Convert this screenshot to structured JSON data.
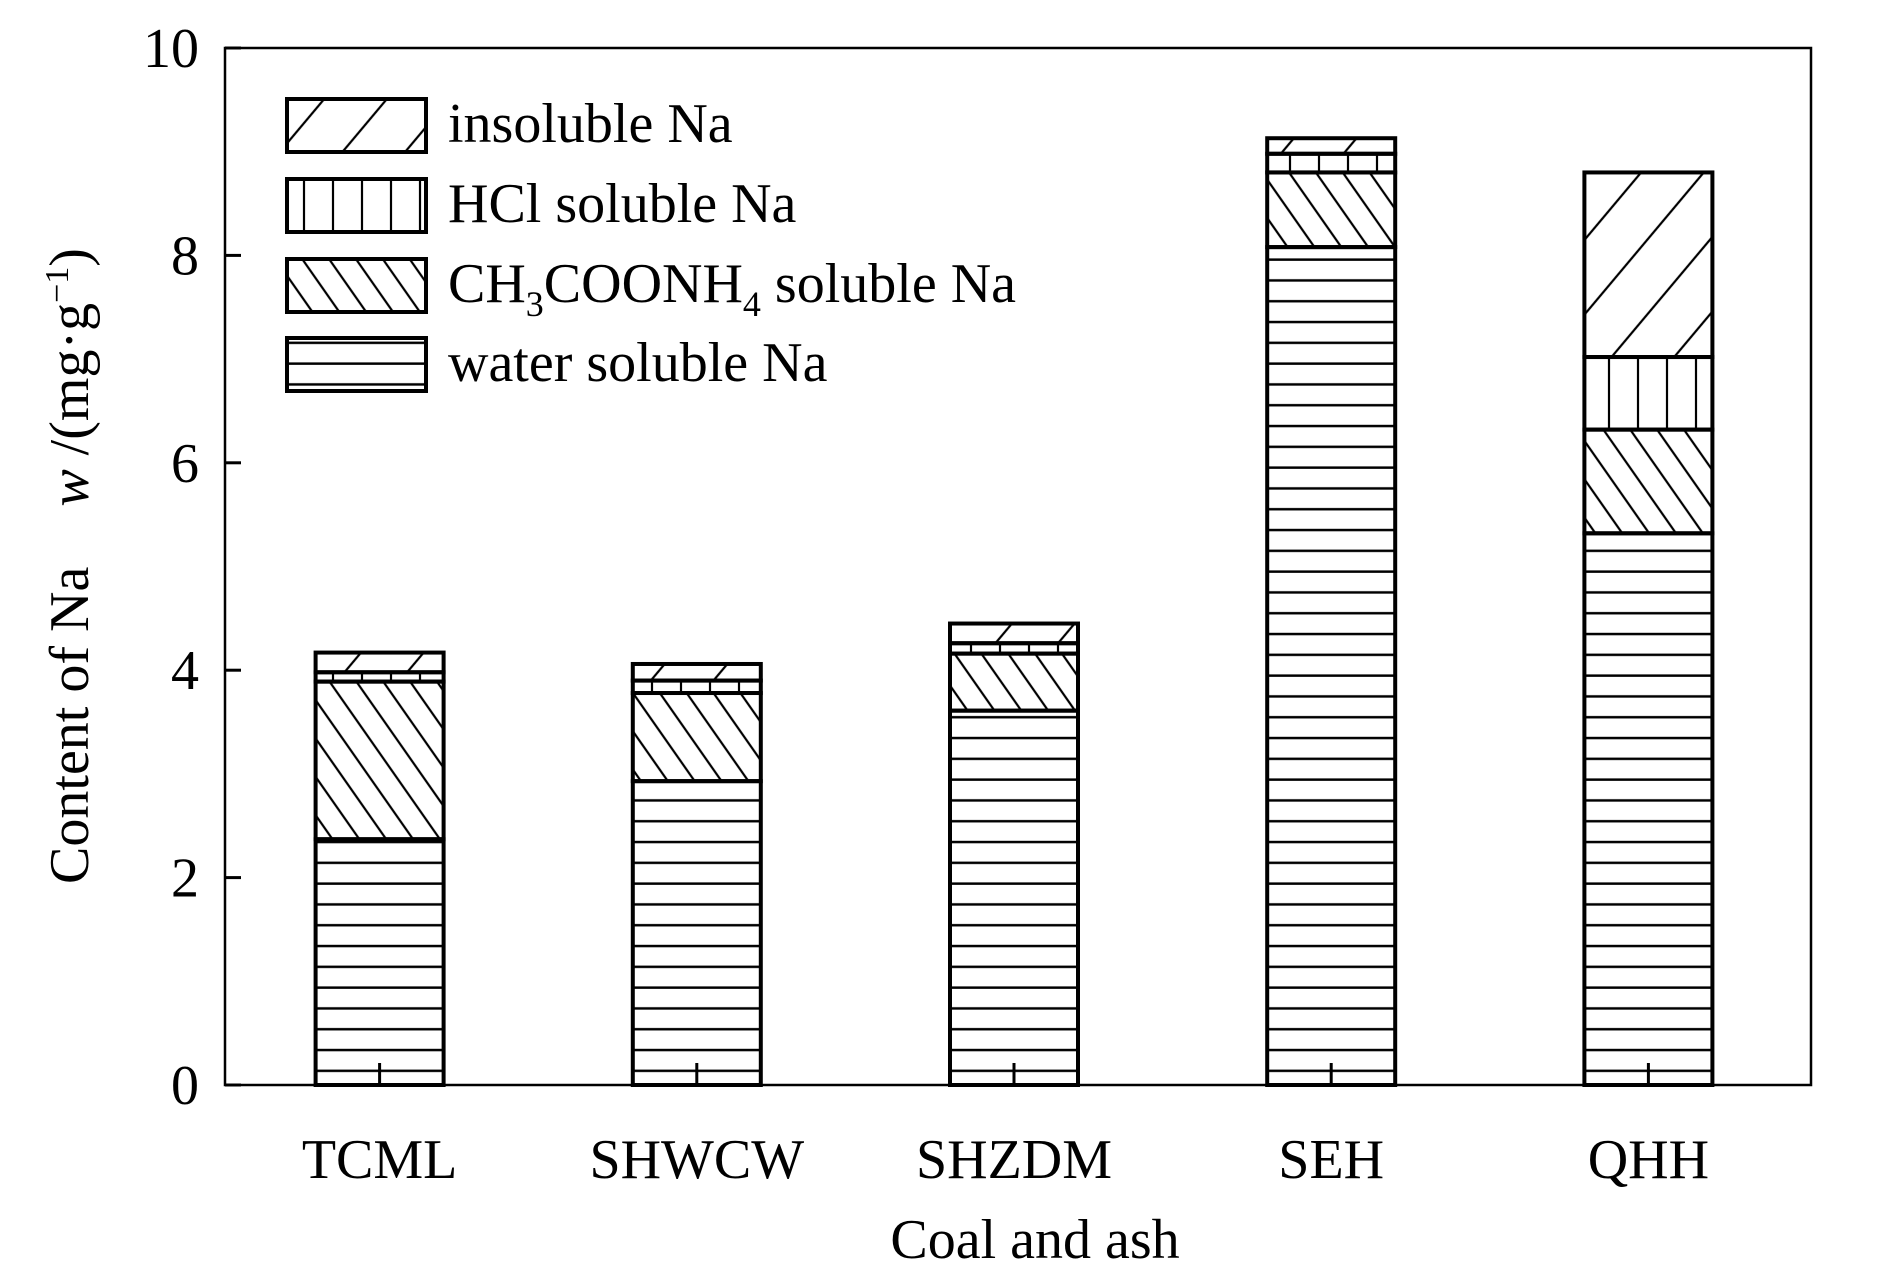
{
  "chart_data": {
    "type": "bar",
    "stacked": true,
    "xlabel": "Coal and ash",
    "ylabel": "Content of Na",
    "ylabel_symbol": "w",
    "ylabel_unit": "/(mg·g",
    "ylabel_unit_exp": "−1",
    "ylabel_unit_close": ")",
    "ylim": [
      0,
      10
    ],
    "yticks": [
      0,
      2,
      4,
      6,
      8,
      10
    ],
    "grid": false,
    "legend_position": "top-left",
    "categories": [
      "TCML",
      "SHWCW",
      "SHZDM",
      "SEH",
      "QHH"
    ],
    "series": [
      {
        "name": "water soluble Na",
        "pattern": "horizontal",
        "values": [
          2.37,
          2.93,
          3.61,
          8.08,
          5.32
        ]
      },
      {
        "name": "CH3COONH4 soluble Na",
        "name_parts": [
          "CH",
          "3",
          "COONH",
          "4",
          " soluble Na"
        ],
        "pattern": "back-diagonal",
        "values": [
          1.52,
          0.85,
          0.55,
          0.72,
          1.0
        ]
      },
      {
        "name": "HCl soluble Na",
        "pattern": "vertical",
        "values": [
          0.09,
          0.12,
          0.1,
          0.18,
          0.7
        ]
      },
      {
        "name": "insoluble Na",
        "pattern": "forward-diagonal",
        "values": [
          0.19,
          0.16,
          0.19,
          0.15,
          1.78
        ]
      }
    ],
    "legend_order": [
      3,
      2,
      1,
      0
    ]
  }
}
